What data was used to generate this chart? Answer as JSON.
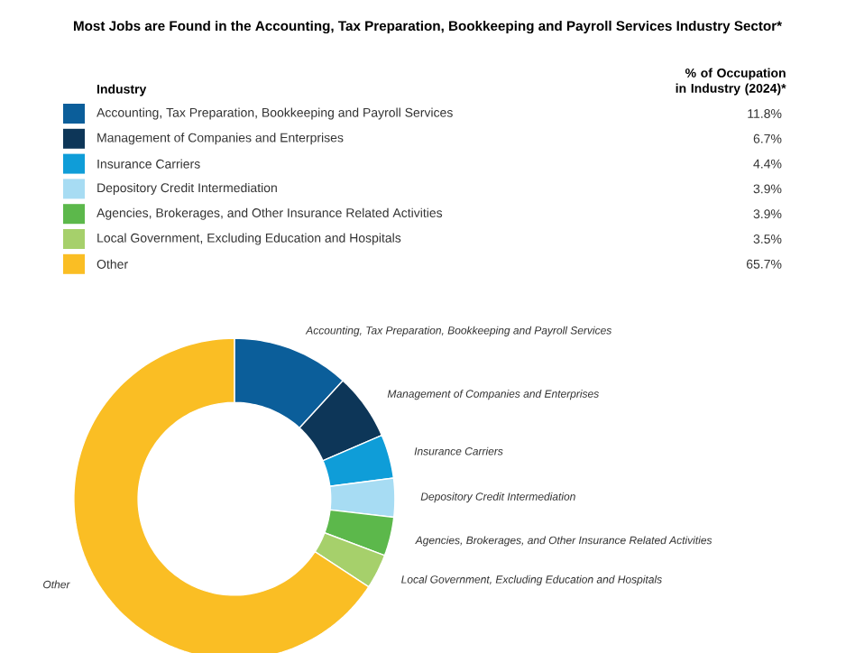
{
  "chart_data": {
    "type": "donut",
    "title": "Most Jobs are Found in the Accounting, Tax Preparation, Bookkeeping and Payroll Services Industry Sector*",
    "legend_title": "Industry",
    "annotations": [
      "% of Occupation in Industry (2024)*"
    ],
    "legend": "top",
    "categories": [
      "Accounting, Tax Preparation, Bookkeeping and Payroll Services",
      "Management of Companies and Enterprises",
      "Insurance Carriers",
      "Depository Credit Intermediation",
      "Agencies, Brokerages, and Other Insurance Related Activities",
      "Local Government, Excluding Education and Hospitals",
      "Other"
    ],
    "values": [
      11.8,
      6.7,
      4.4,
      3.9,
      3.9,
      3.5,
      65.7
    ],
    "value_labels": [
      "11.8%",
      "6.7%",
      "4.4%",
      "3.9%",
      "3.9%",
      "3.5%",
      "65.7%"
    ],
    "colors": [
      "#0b5e9a",
      "#0d3658",
      "#0f9dd8",
      "#a7dcf3",
      "#5cb84b",
      "#a6d06b",
      "#fabe24"
    ]
  }
}
